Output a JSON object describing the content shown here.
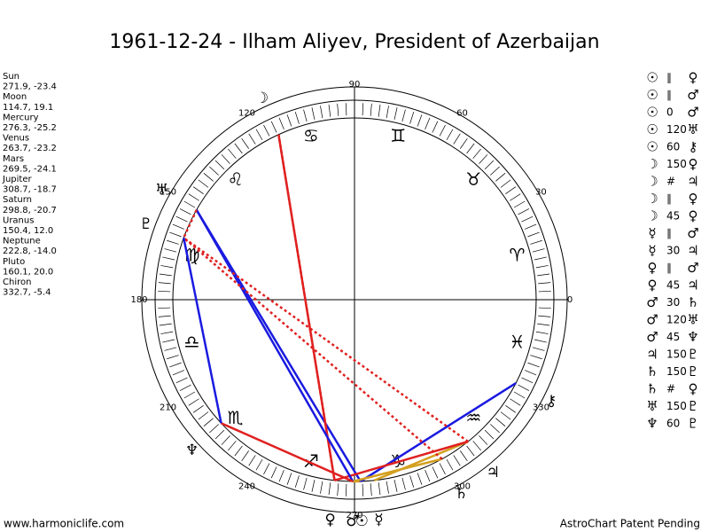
{
  "title": "1961-12-24 - Ilham Aliyev, President of Azerbaijan",
  "planets": [
    {
      "name": "Sun",
      "glyph": "☉",
      "position": "271.9, -23.4"
    },
    {
      "name": "Moon",
      "glyph": "☽",
      "position": "114.7, 19.1"
    },
    {
      "name": "Mercury",
      "glyph": "☿",
      "position": "276.3, -25.2"
    },
    {
      "name": "Venus",
      "glyph": "♀",
      "position": "263.7, -23.2"
    },
    {
      "name": "Mars",
      "glyph": "♂",
      "position": "269.5, -24.1"
    },
    {
      "name": "Jupiter",
      "glyph": "♃",
      "position": "308.7, -18.7"
    },
    {
      "name": "Saturn",
      "glyph": "♄",
      "position": "298.8, -20.7"
    },
    {
      "name": "Uranus",
      "glyph": "♅",
      "position": "150.4, 12.0"
    },
    {
      "name": "Neptune",
      "glyph": "♆",
      "position": "222.8, -14.0"
    },
    {
      "name": "Pluto",
      "glyph": "♇",
      "position": "160.1, 20.0"
    },
    {
      "name": "Chiron",
      "glyph": "⚷",
      "position": "332.7, -5.4"
    }
  ],
  "signs": [
    "♈︎",
    "♉︎",
    "♊︎",
    "♋︎",
    "♌︎",
    "♍︎",
    "♎︎",
    "♏︎",
    "♐︎",
    "♑︎",
    "♒︎",
    "♓︎"
  ],
  "wheel_labels": [
    0,
    30,
    60,
    90,
    120,
    150,
    180,
    210,
    240,
    270,
    300,
    330
  ],
  "aspects": [
    {
      "a": "☉",
      "aspect": "∥",
      "b": "♀"
    },
    {
      "a": "☉",
      "aspect": "∥",
      "b": "♂"
    },
    {
      "a": "☉",
      "aspect": "0",
      "b": "♂"
    },
    {
      "a": "☉",
      "aspect": "120",
      "b": "♅"
    },
    {
      "a": "☉",
      "aspect": "60",
      "b": "⚷"
    },
    {
      "a": "☽",
      "aspect": "150",
      "b": "♀"
    },
    {
      "a": "☽",
      "aspect": "#",
      "b": "♃"
    },
    {
      "a": "☽",
      "aspect": "∥",
      "b": "♀"
    },
    {
      "a": "☽",
      "aspect": "45",
      "b": "♀"
    },
    {
      "a": "☿",
      "aspect": "∥",
      "b": "♂"
    },
    {
      "a": "☿",
      "aspect": "30",
      "b": "♃"
    },
    {
      "a": "♀",
      "aspect": "∥",
      "b": "♂"
    },
    {
      "a": "♀",
      "aspect": "45",
      "b": "♃"
    },
    {
      "a": "♂",
      "aspect": "30",
      "b": "♄"
    },
    {
      "a": "♂",
      "aspect": "120",
      "b": "♅"
    },
    {
      "a": "♂",
      "aspect": "45",
      "b": "♆"
    },
    {
      "a": "♃",
      "aspect": "150",
      "b": "♇"
    },
    {
      "a": "♄",
      "aspect": "150",
      "b": "♇"
    },
    {
      "a": "♄",
      "aspect": "#",
      "b": "♀"
    },
    {
      "a": "♅",
      "aspect": "150",
      "b": "♇"
    },
    {
      "a": "♆",
      "aspect": "60",
      "b": "♇"
    }
  ],
  "aspect_colors": {
    "0": "#d4a020",
    "30": "#d4a020",
    "45": "#e02020",
    "60": "#1a1ae0",
    "120": "#1a1ae0",
    "150": "#e02020"
  },
  "footer": {
    "left": "www.harmoniclife.com",
    "right": "AstroChart Patent Pending"
  }
}
